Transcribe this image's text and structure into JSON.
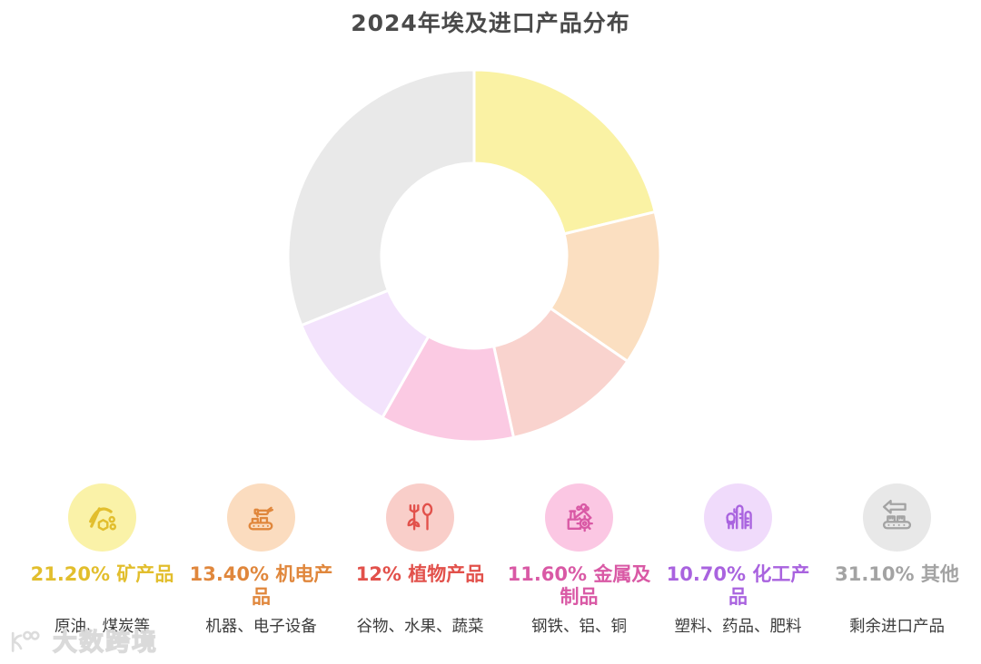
{
  "title": "2024年埃及进口产品分布",
  "chart_data": {
    "type": "pie",
    "subtype": "donut",
    "title": "2024年埃及进口产品分布",
    "start_angle_deg": 0,
    "direction": "clockwise",
    "inner_radius_ratio": 0.5,
    "legend_position": "bottom",
    "grid": false,
    "categories": [
      "矿产品",
      "机电产品",
      "植物产品",
      "金属及制品",
      "化工产品",
      "其他"
    ],
    "values": [
      21.2,
      13.4,
      12,
      11.6,
      10.7,
      31.1
    ],
    "value_labels": [
      "21.20%",
      "13.40%",
      "12%",
      "11.60%",
      "10.70%",
      "31.10%"
    ],
    "colors": [
      "#FAF2A4",
      "#FBDFC1",
      "#F9D3CE",
      "#FBCAE3",
      "#F3E3FC",
      "#E9E9E9"
    ]
  },
  "legend": {
    "items": [
      {
        "pct": "21.20%",
        "name": "矿产品",
        "desc": "原油、煤炭等",
        "icon": "pickaxe-icon",
        "text_color": "#E2BE2D",
        "circle_color": "#FAF2A8"
      },
      {
        "pct": "13.40%",
        "name": "机电产品",
        "desc": "机器、电子设备",
        "icon": "robot-arm-icon",
        "text_color": "#E0873C",
        "circle_color": "#FBDCBF"
      },
      {
        "pct": "12%",
        "name": "植物产品",
        "desc": "谷物、水果、蔬菜",
        "icon": "fork-spoon-leaf-icon",
        "text_color": "#E2514B",
        "circle_color": "#F9CEC9"
      },
      {
        "pct": "11.60%",
        "name": "金属及制品",
        "desc": "钢铁、铝、铜",
        "icon": "factory-gear-icon",
        "text_color": "#D959A5",
        "circle_color": "#FBC7E3"
      },
      {
        "pct": "10.70%",
        "name": "化工产品",
        "desc": "塑料、药品、肥料",
        "icon": "chemical-plant-icon",
        "text_color": "#A963DF",
        "circle_color": "#F0DBFB"
      },
      {
        "pct": "31.10%",
        "name": "其他",
        "desc": "剩余进口产品",
        "icon": "conveyor-arrow-icon",
        "text_color": "#A3A3A3",
        "circle_color": "#E8E8E8"
      }
    ]
  },
  "watermark": {
    "text": "大数跨境"
  }
}
